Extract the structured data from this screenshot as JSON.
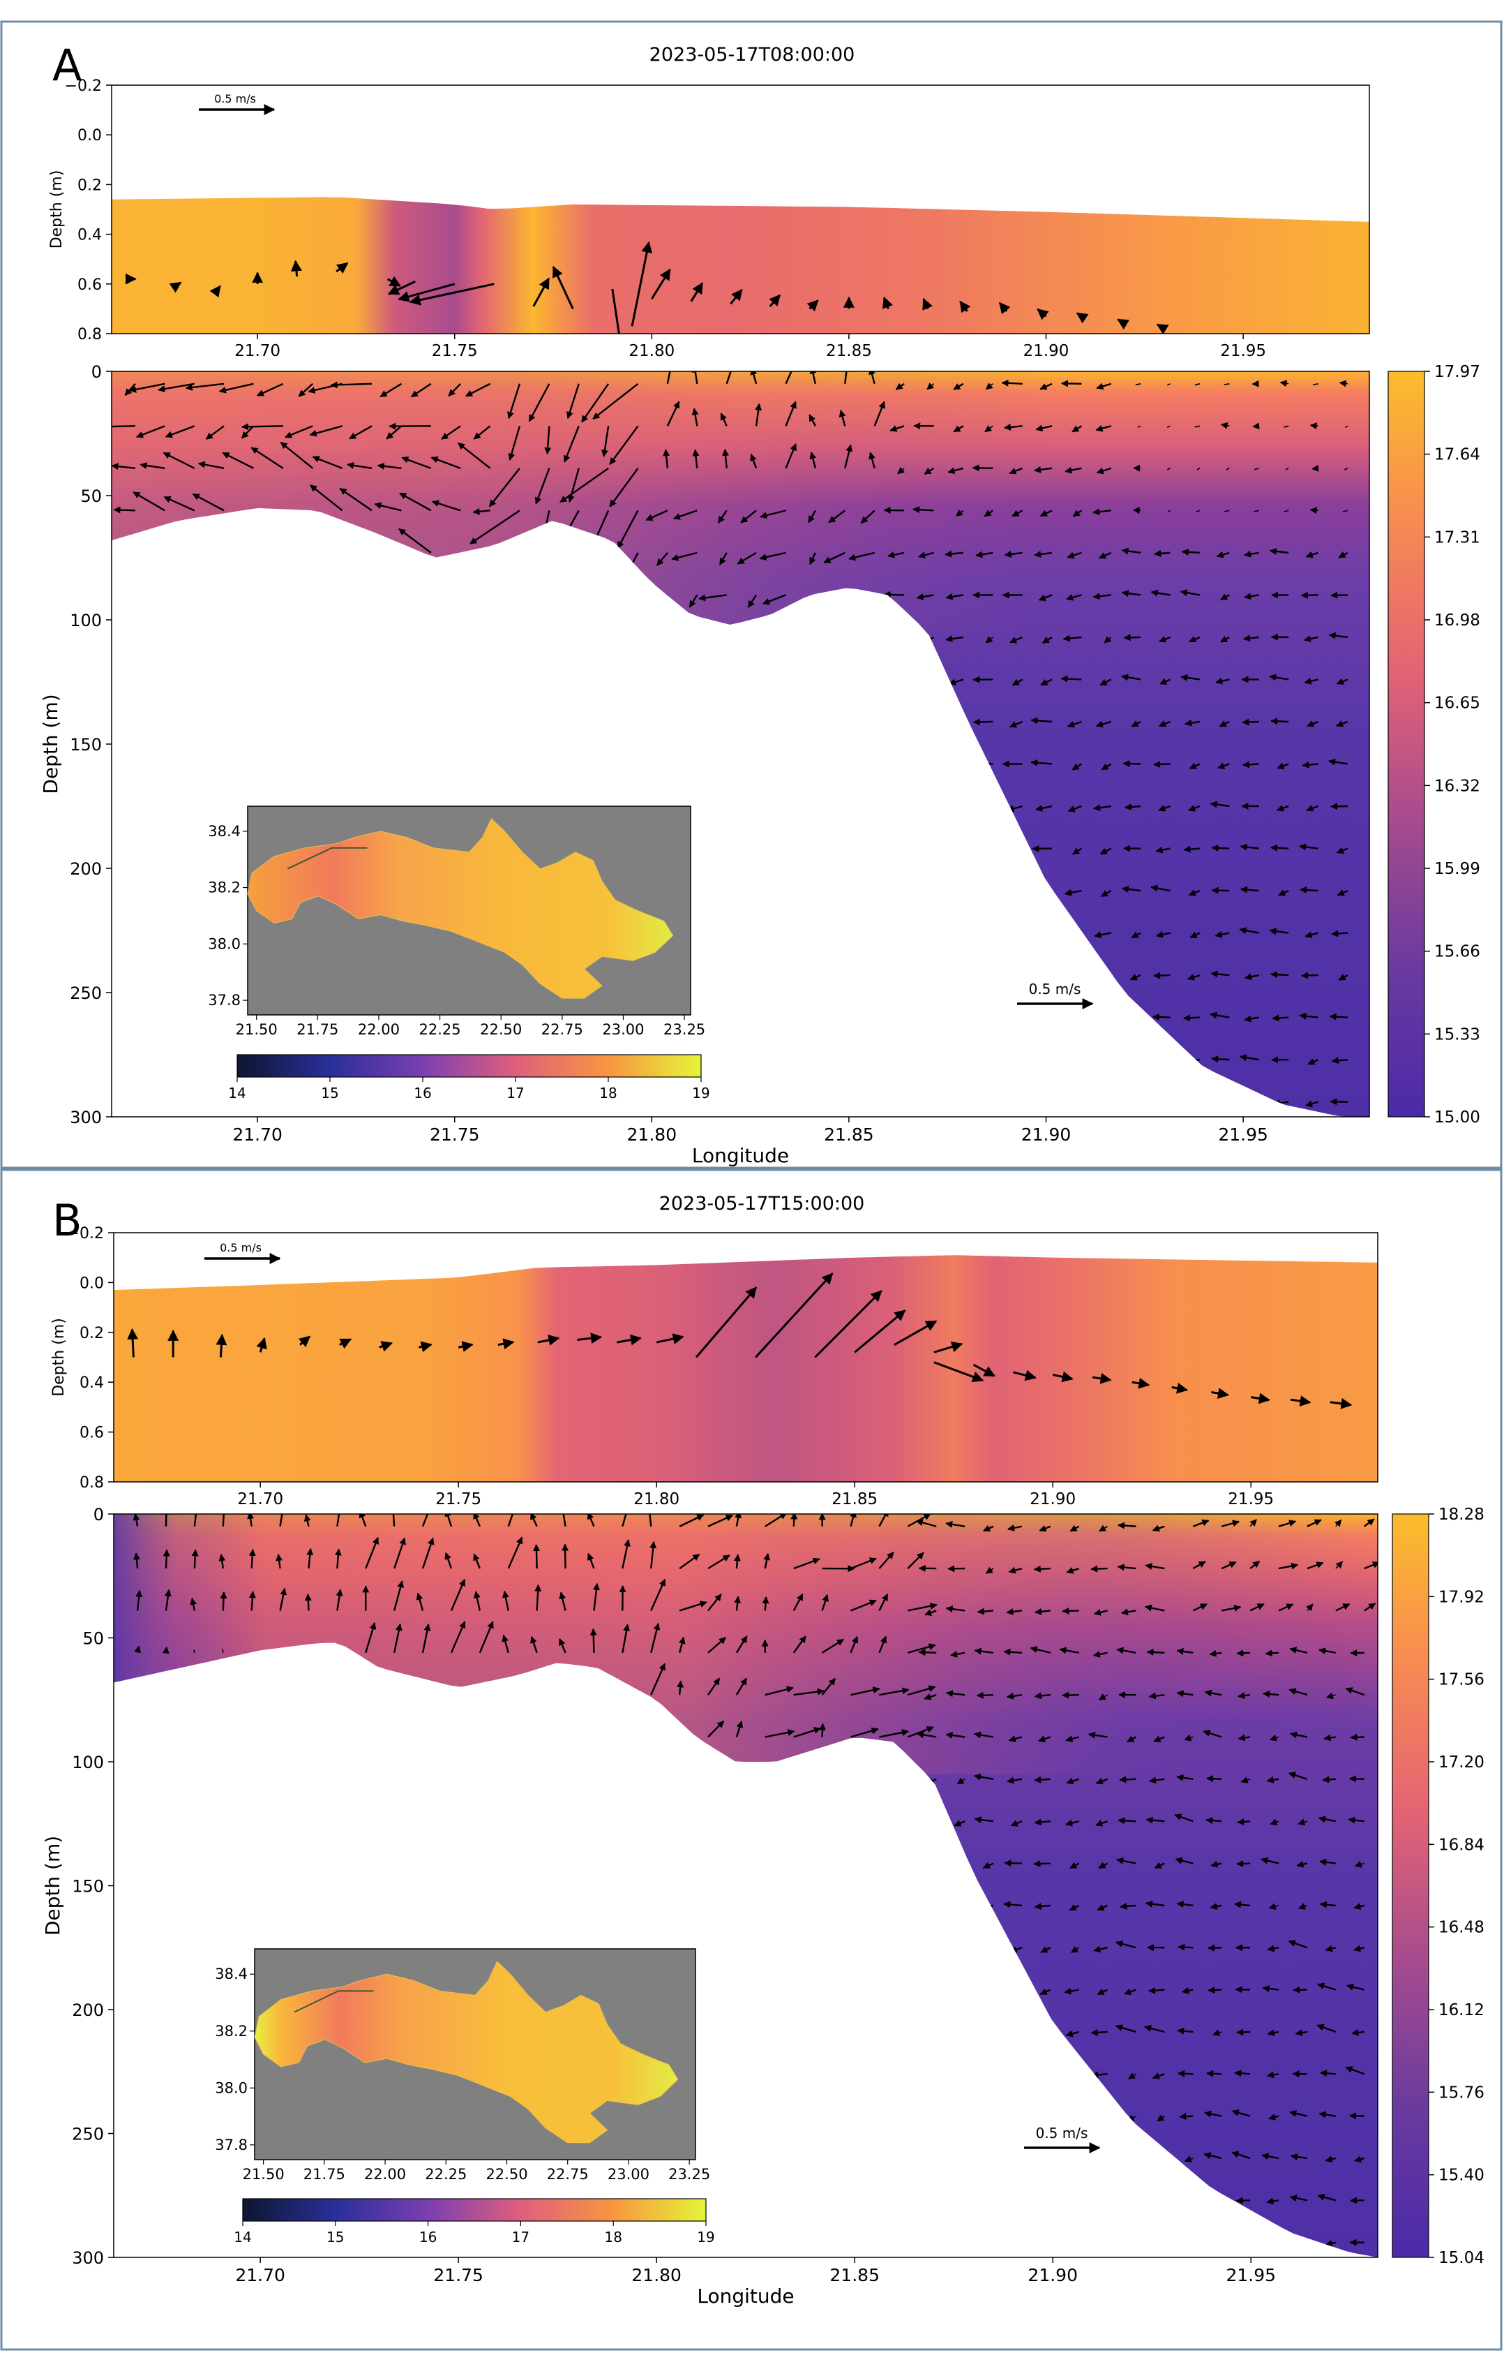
{
  "chart_data": [
    {
      "panel": "A",
      "title": "2023-05-17T08:00:00",
      "type": "section-quiver",
      "xlabel": "Longitude",
      "xticks": [
        "21.70",
        "21.75",
        "21.80",
        "21.85",
        "21.90",
        "21.95"
      ],
      "xlim": [
        21.663,
        21.982
      ],
      "top": {
        "ylabel": "Depth (m)",
        "ylim": [
          -0.2,
          0.8
        ],
        "yticks": [
          "−0.2",
          "0.0",
          "0.2",
          "0.4",
          "0.6",
          "0.8"
        ],
        "surface": {
          "lon": [
            21.663,
            21.72,
            21.75,
            21.76,
            21.78,
            21.85,
            21.9,
            21.982
          ],
          "depth": [
            0.26,
            0.25,
            0.28,
            0.3,
            0.28,
            0.29,
            0.31,
            0.35
          ]
        },
        "temp_profile": {
          "lon": [
            21.663,
            21.7,
            21.725,
            21.735,
            21.75,
            21.757,
            21.77,
            21.773,
            21.785,
            21.82,
            21.87,
            21.93,
            21.982
          ],
          "temp": [
            17.85,
            17.85,
            17.75,
            16.55,
            16.2,
            16.8,
            17.9,
            17.7,
            16.95,
            16.9,
            17.1,
            17.55,
            17.85
          ]
        },
        "scale_label": "0.5 m/s"
      },
      "main": {
        "ylabel": "Depth (m)",
        "ylim": [
          300,
          0
        ],
        "yticks": [
          "0",
          "50",
          "100",
          "150",
          "200",
          "250",
          "300"
        ],
        "bottom": {
          "lon": [
            21.663,
            21.68,
            21.7,
            21.715,
            21.73,
            21.745,
            21.76,
            21.775,
            21.79,
            21.8,
            21.81,
            21.82,
            21.83,
            21.84,
            21.85,
            21.86,
            21.87,
            21.88,
            21.9,
            21.92,
            21.94,
            21.96,
            21.975,
            21.982
          ],
          "depth": [
            68,
            60,
            55,
            56,
            65,
            75,
            70,
            60,
            68,
            85,
            98,
            102,
            98,
            90,
            87,
            90,
            105,
            140,
            205,
            250,
            280,
            295,
            300,
            300
          ]
        },
        "scale_label": "0.5 m/s"
      },
      "colorbar": {
        "min": 15.0,
        "max": 17.97,
        "ticks": [
          "17.97",
          "17.64",
          "17.31",
          "16.98",
          "16.65",
          "16.32",
          "15.99",
          "15.66",
          "15.33",
          "15.00"
        ]
      },
      "inset": {
        "xticks": [
          "21.50",
          "21.75",
          "22.00",
          "22.25",
          "22.50",
          "22.75",
          "23.00",
          "23.25"
        ],
        "yticks": [
          "38.4",
          "38.2",
          "38.0",
          "37.8"
        ],
        "cbar_ticks": [
          "14",
          "15",
          "16",
          "17",
          "18",
          "19"
        ],
        "cbar_range": [
          14,
          19
        ]
      }
    },
    {
      "panel": "B",
      "title": "2023-05-17T15:00:00",
      "type": "section-quiver",
      "xlabel": "Longitude",
      "xticks": [
        "21.70",
        "21.75",
        "21.80",
        "21.85",
        "21.90",
        "21.95"
      ],
      "xlim": [
        21.663,
        21.982
      ],
      "top": {
        "ylabel": "Depth (m)",
        "ylim": [
          -0.2,
          0.8
        ],
        "yticks": [
          "−0.2",
          "0.0",
          "0.2",
          "0.4",
          "0.6",
          "0.8"
        ],
        "surface": {
          "lon": [
            21.663,
            21.7,
            21.75,
            21.77,
            21.8,
            21.85,
            21.875,
            21.9,
            21.982
          ],
          "depth": [
            0.03,
            0.01,
            -0.02,
            -0.06,
            -0.07,
            -0.1,
            -0.11,
            -0.1,
            -0.08
          ]
        },
        "temp_profile": {
          "lon": [
            21.663,
            21.74,
            21.765,
            21.775,
            21.8,
            21.83,
            21.86,
            21.875,
            21.885,
            21.91,
            21.93,
            21.982
          ],
          "temp": [
            18.0,
            17.95,
            17.75,
            17.0,
            16.9,
            16.6,
            16.9,
            17.4,
            16.95,
            17.3,
            17.7,
            17.85
          ]
        },
        "scale_label": "0.5 m/s"
      },
      "main": {
        "ylabel": "Depth (m)",
        "ylim": [
          300,
          0
        ],
        "yticks": [
          "0",
          "50",
          "100",
          "150",
          "200",
          "250",
          "300"
        ],
        "bottom": {
          "lon": [
            21.663,
            21.7,
            21.715,
            21.72,
            21.73,
            21.745,
            21.75,
            21.765,
            21.775,
            21.785,
            21.8,
            21.81,
            21.82,
            21.83,
            21.84,
            21.85,
            21.86,
            21.87,
            21.88,
            21.9,
            21.92,
            21.94,
            21.96,
            21.975,
            21.982
          ],
          "depth": [
            68,
            55,
            52,
            52,
            62,
            68,
            70,
            65,
            60,
            62,
            75,
            90,
            100,
            100,
            95,
            90,
            92,
            108,
            145,
            205,
            245,
            272,
            290,
            298,
            300
          ]
        },
        "scale_label": "0.5 m/s"
      },
      "colorbar": {
        "min": 15.04,
        "max": 18.28,
        "ticks": [
          "18.28",
          "17.92",
          "17.56",
          "17.20",
          "16.84",
          "16.48",
          "16.12",
          "15.76",
          "15.40",
          "15.04"
        ]
      },
      "inset": {
        "xticks": [
          "21.50",
          "21.75",
          "22.00",
          "22.25",
          "22.50",
          "22.75",
          "23.00",
          "23.25"
        ],
        "yticks": [
          "38.4",
          "38.2",
          "38.0",
          "37.8"
        ],
        "cbar_ticks": [
          "14",
          "15",
          "16",
          "17",
          "18",
          "19"
        ],
        "cbar_range": [
          14,
          19
        ]
      }
    }
  ]
}
